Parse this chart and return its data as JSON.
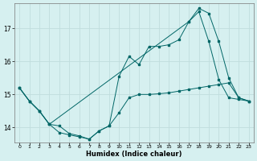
{
  "xlabel": "Humidex (Indice chaleur)",
  "bg_color": "#d6f0f0",
  "grid_color": "#c0dede",
  "line_color": "#006666",
  "x_ticks": [
    0,
    1,
    2,
    3,
    4,
    5,
    6,
    7,
    8,
    9,
    10,
    11,
    12,
    13,
    14,
    15,
    16,
    17,
    18,
    19,
    20,
    21,
    22,
    23
  ],
  "y_ticks": [
    14,
    15,
    16,
    17
  ],
  "ylim": [
    13.55,
    17.75
  ],
  "xlim": [
    -0.5,
    23.5
  ],
  "line1_x": [
    0,
    1,
    2,
    3,
    4,
    5,
    6,
    7,
    8,
    9,
    10,
    11,
    12,
    13,
    14,
    15,
    16,
    17,
    18,
    19,
    20,
    21,
    22,
    23
  ],
  "line1_y": [
    15.2,
    14.8,
    14.5,
    14.1,
    13.85,
    13.78,
    13.72,
    13.65,
    13.9,
    14.05,
    14.45,
    14.9,
    15.0,
    15.0,
    15.02,
    15.05,
    15.1,
    15.15,
    15.2,
    15.25,
    15.3,
    15.35,
    14.9,
    14.8
  ],
  "line2_x": [
    0,
    1,
    2,
    3,
    4,
    5,
    6,
    7,
    8,
    9,
    10,
    11,
    12,
    13,
    14,
    15,
    16,
    17,
    18,
    19,
    20,
    21,
    22,
    23
  ],
  "line2_y": [
    15.2,
    14.8,
    14.5,
    14.1,
    14.05,
    13.82,
    13.75,
    13.65,
    13.9,
    14.05,
    15.55,
    16.15,
    15.9,
    16.45,
    16.45,
    16.5,
    16.65,
    17.2,
    17.5,
    16.6,
    15.45,
    14.9,
    14.85,
    14.8
  ],
  "line3_x": [
    0,
    1,
    2,
    3,
    17,
    18,
    19,
    20,
    21,
    22,
    23
  ],
  "line3_y": [
    15.2,
    14.8,
    14.5,
    14.1,
    17.2,
    17.6,
    17.45,
    16.6,
    15.5,
    14.9,
    14.8
  ]
}
